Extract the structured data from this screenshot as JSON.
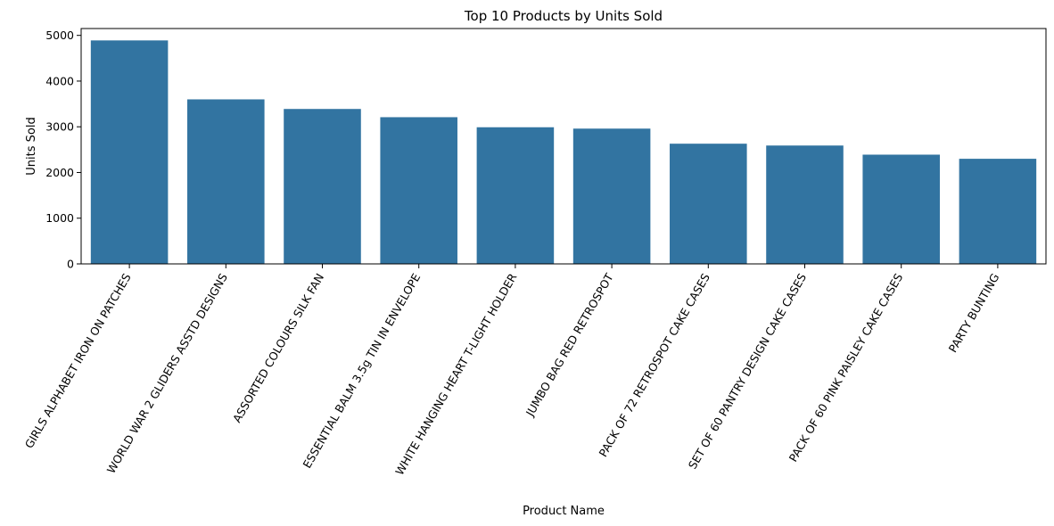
{
  "chart_data": {
    "type": "bar",
    "title": "Top 10 Products by Units Sold",
    "xlabel": "Product Name",
    "ylabel": "Units Sold",
    "ylim": [
      0,
      5150
    ],
    "yticks": [
      0,
      1000,
      2000,
      3000,
      4000,
      5000
    ],
    "grid": false,
    "bar_color": "#3274a1",
    "categories": [
      "GIRLS ALPHABET IRON ON PATCHES",
      "WORLD WAR 2 GLIDERS ASSTD DESIGNS",
      "ASSORTED COLOURS SILK FAN",
      "ESSENTIAL BALM 3.5g TIN IN ENVELOPE",
      "WHITE HANGING HEART T-LIGHT HOLDER",
      "JUMBO BAG RED RETROSPOT",
      "PACK OF 72 RETROSPOT CAKE CASES",
      "SET OF 60 PANTRY DESIGN CAKE CASES",
      "PACK OF 60 PINK PAISLEY CAKE CASES",
      "PARTY BUNTING"
    ],
    "values": [
      4890,
      3600,
      3390,
      3210,
      2990,
      2960,
      2630,
      2590,
      2390,
      2300
    ]
  }
}
